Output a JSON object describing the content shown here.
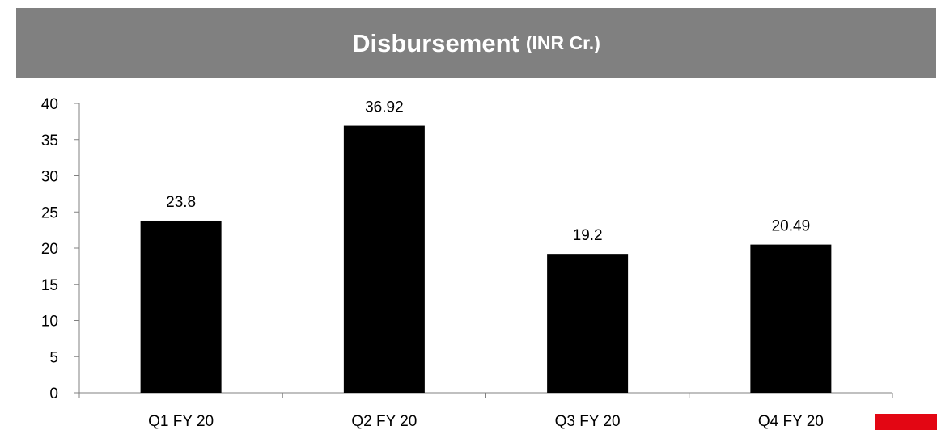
{
  "title": {
    "main": "Disbursement",
    "unit": "(INR Cr.)"
  },
  "colors": {
    "banner": "#808080",
    "banner_text": "#ffffff",
    "bar": "#000000",
    "axis": "#808080",
    "accent": "#e30613"
  },
  "chart_data": {
    "type": "bar",
    "categories": [
      "Q1 FY 20",
      "Q2 FY 20",
      "Q3 FY 20",
      "Q4 FY 20"
    ],
    "values": [
      23.8,
      36.92,
      19.2,
      20.49
    ],
    "data_labels": [
      "23.8",
      "36.92",
      "19.2",
      "20.49"
    ],
    "y_ticks": [
      0,
      5,
      10,
      15,
      20,
      25,
      30,
      35,
      40
    ],
    "ylim": [
      0,
      40
    ],
    "grid": false,
    "legend": "none",
    "title": "Disbursement (INR Cr.)"
  }
}
